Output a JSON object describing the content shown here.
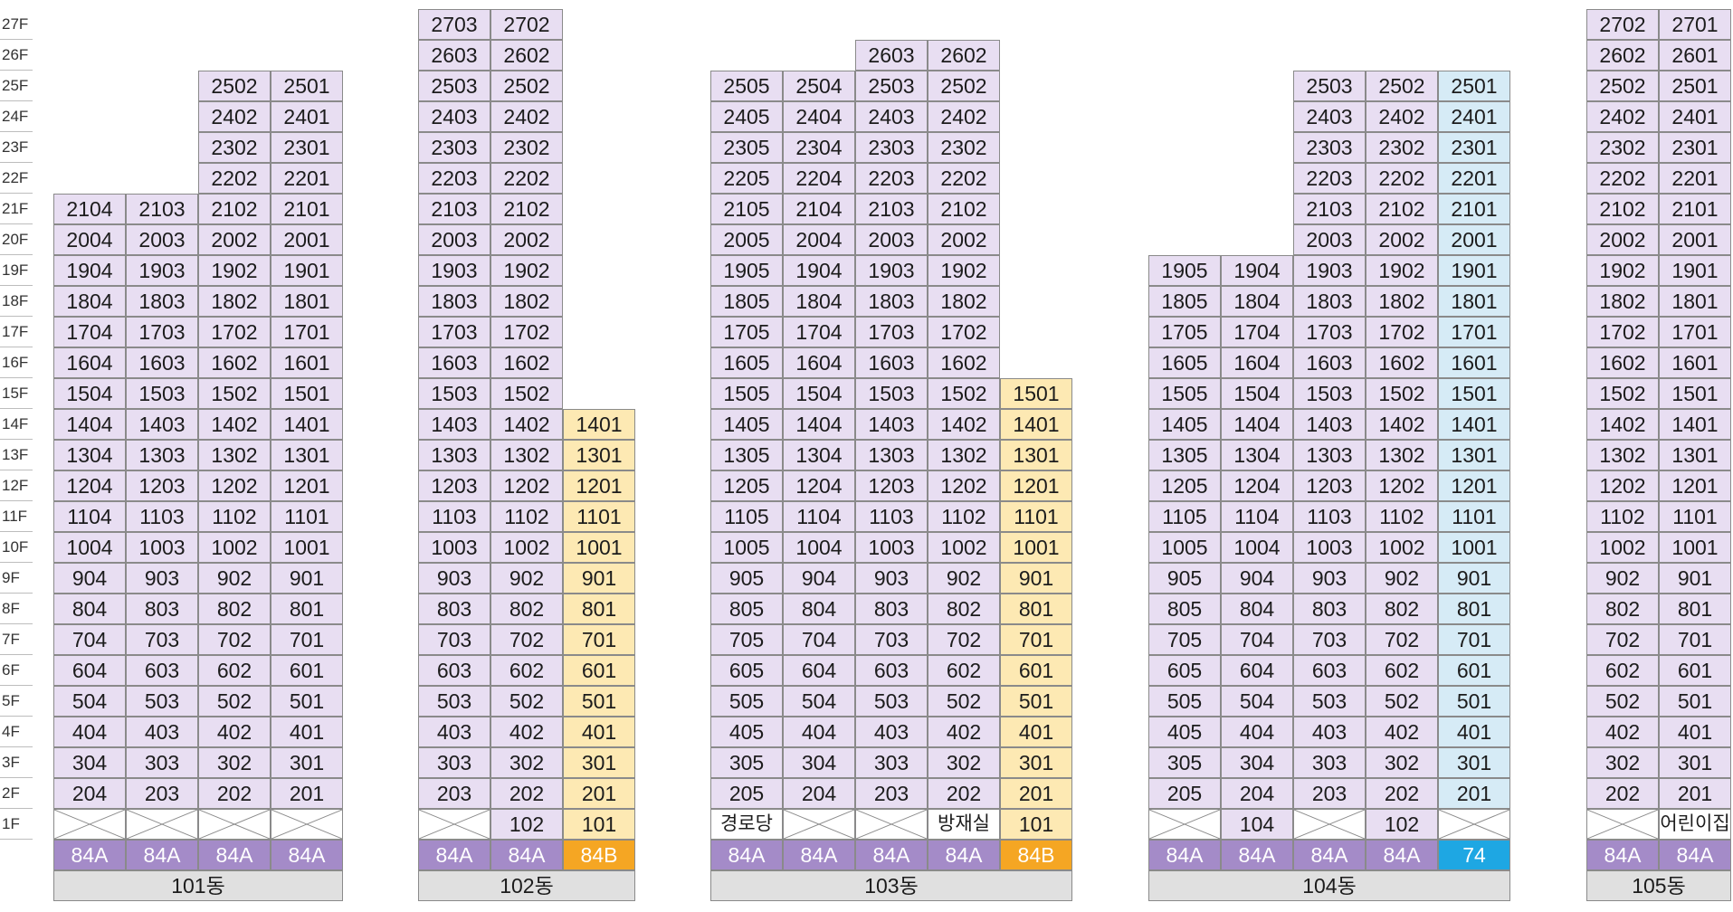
{
  "floors": [
    "27F",
    "26F",
    "25F",
    "24F",
    "23F",
    "22F",
    "21F",
    "20F",
    "19F",
    "18F",
    "17F",
    "16F",
    "15F",
    "14F",
    "13F",
    "12F",
    "11F",
    "10F",
    "9F",
    "8F",
    "7F",
    "6F",
    "5F",
    "4F",
    "3F",
    "2F",
    "1F"
  ],
  "buildings": [
    {
      "name": "101동",
      "types": [
        {
          "label": "84A",
          "color": "purple"
        },
        {
          "label": "84A",
          "color": "purple"
        },
        {
          "label": "84A",
          "color": "purple"
        },
        {
          "label": "84A",
          "color": "purple"
        }
      ],
      "columns": [
        {
          "tone": "purple",
          "top": 21,
          "first": [
            {
              "kind": "x"
            }
          ]
        },
        {
          "tone": "purple",
          "top": 21,
          "first": [
            {
              "kind": "x"
            }
          ]
        },
        {
          "tone": "purple",
          "top": 25,
          "first": [
            {
              "kind": "x"
            }
          ]
        },
        {
          "tone": "purple",
          "top": 25,
          "first": [
            {
              "kind": "x"
            }
          ]
        }
      ],
      "line_nums": [
        "04",
        "03",
        "02",
        "01"
      ]
    },
    {
      "name": "102동",
      "types": [
        {
          "label": "84A",
          "color": "purple"
        },
        {
          "label": "84A",
          "color": "purple"
        },
        {
          "label": "84B",
          "color": "orange"
        }
      ],
      "columns": [
        {
          "tone": "purple",
          "top": 27,
          "first": [
            {
              "kind": "x"
            }
          ]
        },
        {
          "tone": "purple",
          "top": 27,
          "first": [
            {
              "kind": "unit",
              "text": "102"
            }
          ]
        },
        {
          "tone": "yellow",
          "top": 14,
          "first": [
            {
              "kind": "unit",
              "text": "101"
            }
          ]
        }
      ],
      "line_nums": [
        "03",
        "02",
        "01"
      ]
    },
    {
      "name": "103동",
      "types": [
        {
          "label": "84A",
          "color": "purple"
        },
        {
          "label": "84A",
          "color": "purple"
        },
        {
          "label": "84A",
          "color": "purple"
        },
        {
          "label": "84A",
          "color": "purple"
        },
        {
          "label": "84B",
          "color": "orange"
        }
      ],
      "columns": [
        {
          "tone": "purple",
          "top": 25,
          "first": [
            {
              "kind": "facility",
              "text": "경로당"
            }
          ]
        },
        {
          "tone": "purple",
          "top": 25,
          "first": [
            {
              "kind": "x"
            }
          ]
        },
        {
          "tone": "purple",
          "top": 26,
          "first": [
            {
              "kind": "x"
            }
          ]
        },
        {
          "tone": "purple",
          "top": 26,
          "first": [
            {
              "kind": "facility",
              "text": "방재실"
            }
          ]
        },
        {
          "tone": "yellow",
          "top": 15,
          "first": [
            {
              "kind": "unit",
              "text": "101"
            }
          ]
        }
      ],
      "line_nums": [
        "05",
        "04",
        "03",
        "02",
        "01"
      ]
    },
    {
      "name": "104동",
      "types": [
        {
          "label": "84A",
          "color": "purple"
        },
        {
          "label": "84A",
          "color": "purple"
        },
        {
          "label": "84A",
          "color": "purple"
        },
        {
          "label": "84A",
          "color": "purple"
        },
        {
          "label": "74",
          "color": "cyan"
        }
      ],
      "columns": [
        {
          "tone": "purple",
          "top": 19,
          "first": [
            {
              "kind": "x"
            }
          ]
        },
        {
          "tone": "purple",
          "top": 19,
          "first": [
            {
              "kind": "unit",
              "text": "104"
            }
          ]
        },
        {
          "tone": "purple",
          "top": 25,
          "first": [
            {
              "kind": "x"
            }
          ]
        },
        {
          "tone": "purple",
          "top": 25,
          "first": [
            {
              "kind": "unit",
              "text": "102"
            }
          ]
        },
        {
          "tone": "blue",
          "top": 25,
          "first": [
            {
              "kind": "x"
            }
          ]
        }
      ],
      "line_nums": [
        "05",
        "04",
        "03",
        "02",
        "01"
      ]
    },
    {
      "name": "105동",
      "types": [
        {
          "label": "84A",
          "color": "purple"
        },
        {
          "label": "84A",
          "color": "purple"
        }
      ],
      "columns": [
        {
          "tone": "purple",
          "top": 27,
          "first": [
            {
              "kind": "x"
            }
          ]
        },
        {
          "tone": "purple",
          "top": 27,
          "first": [
            {
              "kind": "facility",
              "text": "어린이집"
            }
          ]
        }
      ],
      "line_nums": [
        "02",
        "01"
      ]
    }
  ],
  "colors": {
    "purple": "#e8def2",
    "yellow": "#fde9b3",
    "blue": "#d6ebf6",
    "type_purple": "#a48bc8",
    "type_orange": "#f5a623",
    "type_cyan": "#1ea7e3",
    "building_label": "#e0e0e0"
  }
}
